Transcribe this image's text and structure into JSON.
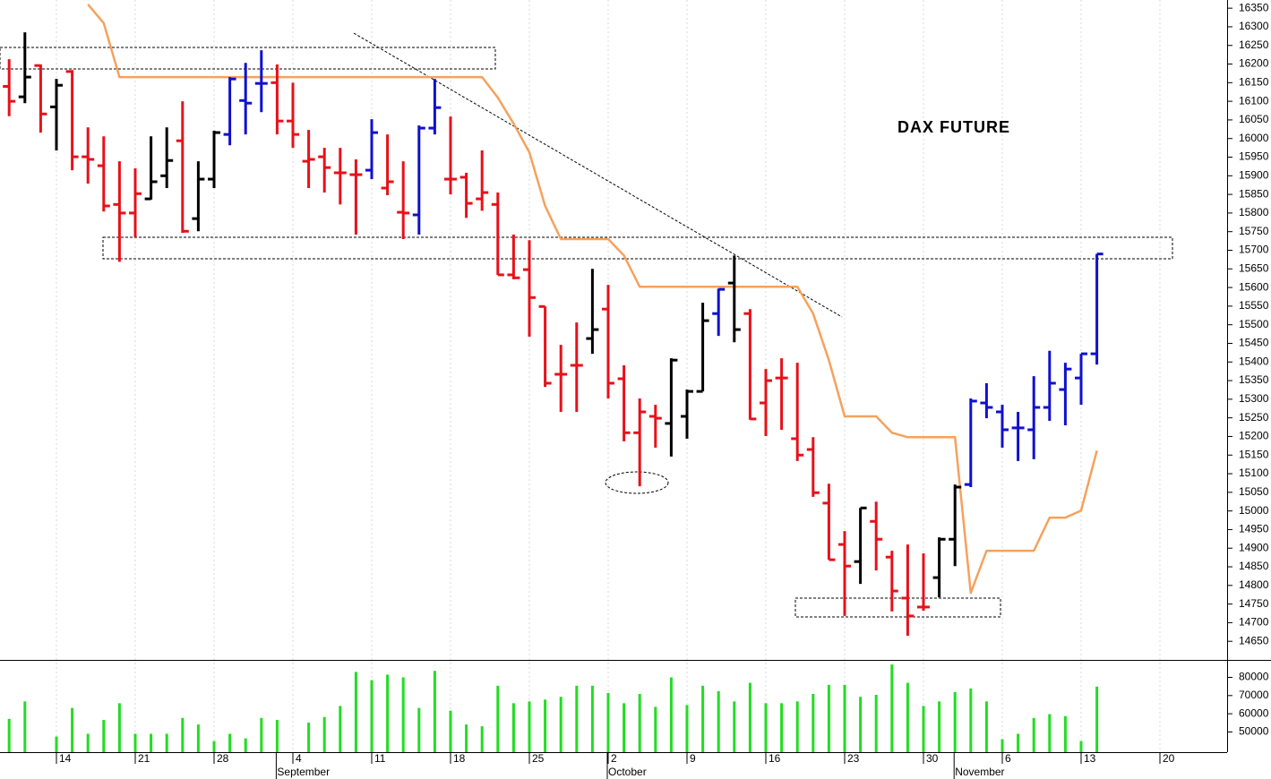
{
  "chart_data": {
    "type": "ohlc",
    "title": "DAX FUTURE",
    "categories": [
      null,
      null,
      null,
      "14",
      null,
      null,
      null,
      null,
      "21",
      null,
      null,
      null,
      null,
      "28",
      null,
      null,
      null,
      null,
      "4",
      null,
      null,
      null,
      null,
      "11",
      null,
      null,
      null,
      null,
      "18",
      null,
      null,
      null,
      null,
      "25",
      null,
      null,
      null,
      null,
      "2",
      null,
      null,
      null,
      null,
      "9",
      null,
      null,
      null,
      null,
      "16",
      null,
      null,
      null,
      null,
      "23",
      null,
      null,
      null,
      null,
      "30",
      null,
      null,
      null,
      null,
      "6",
      null,
      null,
      null,
      null,
      "13",
      null,
      null,
      null,
      null,
      "20",
      null,
      null,
      null,
      null
    ],
    "months": [
      null,
      null,
      null,
      null,
      null,
      null,
      null,
      null,
      null,
      null,
      null,
      null,
      null,
      null,
      null,
      null,
      null,
      "September",
      null,
      null,
      null,
      null,
      null,
      null,
      null,
      null,
      null,
      null,
      null,
      null,
      null,
      null,
      null,
      null,
      null,
      null,
      null,
      null,
      "October",
      null,
      null,
      null,
      null,
      null,
      null,
      null,
      null,
      null,
      null,
      null,
      null,
      null,
      null,
      null,
      null,
      null,
      null,
      null,
      null,
      null,
      "November",
      null,
      null,
      null,
      null,
      null,
      null,
      null,
      null,
      null,
      null,
      null,
      null,
      null,
      null,
      null,
      null,
      null
    ],
    "open": [
      16140,
      16112,
      16196,
      16085,
      16180,
      15951,
      15927,
      15823,
      15800,
      15838,
      15900,
      15994,
      15785,
      15891,
      16011,
      16102,
      16148,
      16150,
      16047,
      15939,
      15951,
      15908,
      15903,
      15915,
      15867,
      15802,
      15795,
      16028,
      15891,
      15896,
      15838,
      15823,
      15634,
      15648,
      15549,
      15367,
      15391,
      15463,
      15542,
      15355,
      15210,
      15254,
      15235,
      15254,
      15321,
      15530,
      15612,
      15530,
      15290,
      15357,
      15194,
      15165,
      15021,
      14910,
      14864,
      14972,
      14876,
      14766,
      14742,
      14821,
      14924,
      15071,
      15290,
      15266,
      15223,
      15218,
      15278,
      15326,
      15357,
      15422,
      null,
      null,
      null,
      null,
      null,
      null,
      null,
      null
    ],
    "high": [
      16213,
      16285,
      16199,
      16160,
      16184,
      16030,
      16006,
      15939,
      15920,
      16006,
      16030,
      16100,
      15939,
      16021,
      16165,
      16203,
      16237,
      16199,
      16150,
      16023,
      15975,
      15975,
      15944,
      16052,
      16011,
      15939,
      16035,
      16160,
      16059,
      15908,
      15968,
      15855,
      15742,
      15727,
      15549,
      15446,
      15506,
      15650,
      15607,
      15391,
      15302,
      15285,
      15410,
      15326,
      15559,
      15597,
      15686,
      15542,
      15381,
      15410,
      15398,
      15198,
      15073,
      14946,
      15008,
      15025,
      14893,
      14910,
      14886,
      14929,
      15071,
      15302,
      15343,
      15285,
      15266,
      15362,
      15430,
      15398,
      15422,
      15690,
      null,
      null,
      null,
      null,
      null,
      null,
      null,
      null
    ],
    "low": [
      16060,
      16095,
      16016,
      15968,
      15915,
      15879,
      15804,
      15669,
      15735,
      15836,
      15867,
      15747,
      15751,
      15867,
      15982,
      16011,
      16071,
      16011,
      15975,
      15867,
      15855,
      15823,
      15742,
      15891,
      15848,
      15730,
      15742,
      16011,
      15850,
      15787,
      15806,
      15634,
      15622,
      15468,
      15333,
      15266,
      15266,
      15422,
      15302,
      15187,
      15066,
      15170,
      15146,
      15194,
      15321,
      15470,
      15453,
      15245,
      15201,
      15218,
      15134,
      15038,
      14869,
      14718,
      14804,
      14840,
      14730,
      14665,
      14732,
      14768,
      14852,
      15064,
      15249,
      15170,
      15134,
      15139,
      15242,
      15230,
      15285,
      15393,
      null,
      null,
      null,
      null,
      null,
      null,
      null,
      null
    ],
    "close": [
      16100,
      16165,
      16066,
      16143,
      15951,
      15944,
      15819,
      15800,
      15852,
      15884,
      15941,
      15751,
      15891,
      16016,
      16160,
      16095,
      16148,
      16047,
      16011,
      15944,
      15922,
      15908,
      15903,
      16016,
      15884,
      15800,
      16028,
      16083,
      15891,
      15826,
      15855,
      15634,
      15626,
      15573,
      15343,
      15367,
      15391,
      15487,
      15343,
      15210,
      15266,
      15249,
      15405,
      15321,
      15511,
      15595,
      15487,
      15247,
      15350,
      15357,
      15150,
      15049,
      14869,
      14852,
      15008,
      14924,
      14785,
      14718,
      14742,
      14924,
      15064,
      15295,
      15278,
      15218,
      15223,
      15278,
      15343,
      15381,
      15422,
      15690,
      null,
      null,
      null,
      null,
      null,
      null,
      null,
      null
    ],
    "colors": [
      "#e8101a",
      "#000000",
      "#e8101a",
      "#000000",
      "#e8101a",
      "#e8101a",
      "#e8101a",
      "#e8101a",
      "#e8101a",
      "#000000",
      "#000000",
      "#e8101a",
      "#000000",
      "#000000",
      "#1010d0",
      "#1010d0",
      "#1010d0",
      "#e8101a",
      "#e8101a",
      "#e8101a",
      "#e8101a",
      "#e8101a",
      "#e8101a",
      "#1010d0",
      "#e8101a",
      "#e8101a",
      "#1010d0",
      "#1010d0",
      "#e8101a",
      "#e8101a",
      "#e8101a",
      "#e8101a",
      "#e8101a",
      "#e8101a",
      "#e8101a",
      "#e8101a",
      "#e8101a",
      "#000000",
      "#e8101a",
      "#e8101a",
      "#e8101a",
      "#e8101a",
      "#000000",
      "#000000",
      "#000000",
      "#1010d0",
      "#000000",
      "#e8101a",
      "#e8101a",
      "#e8101a",
      "#e8101a",
      "#e8101a",
      "#e8101a",
      "#e8101a",
      "#000000",
      "#e8101a",
      "#e8101a",
      "#e8101a",
      "#e8101a",
      "#000000",
      "#000000",
      "#1010d0",
      "#1010d0",
      "#1010d0",
      "#1010d0",
      "#1010d0",
      "#1010d0",
      "#1010d0",
      "#1010d0",
      "#1010d0",
      null,
      null,
      null,
      null,
      null,
      null,
      null,
      null
    ],
    "line": {
      "color": "#f6a15c",
      "values": [
        null,
        null,
        null,
        null,
        null,
        16360,
        16310,
        16165,
        16165,
        16165,
        16165,
        16165,
        16165,
        16165,
        16165,
        16165,
        16165,
        16165,
        16165,
        16165,
        16165,
        16165,
        16165,
        16165,
        16165,
        16165,
        16165,
        16165,
        16165,
        16165,
        16165,
        16110,
        16040,
        15963,
        15819,
        15730,
        15730,
        15730,
        15730,
        15686,
        15602,
        15602,
        15602,
        15602,
        15602,
        15602,
        15602,
        15602,
        15602,
        15602,
        15602,
        15530,
        15405,
        15254,
        15254,
        15254,
        15210,
        15198,
        15198,
        15198,
        15198,
        14780,
        14893,
        14893,
        14893,
        14893,
        14982,
        14982,
        15001,
        15162,
        null,
        null,
        null,
        null,
        null,
        null,
        null,
        null
      ]
    },
    "ylim": [
      14600,
      16372
    ],
    "yticks": [
      14650,
      14700,
      14750,
      14800,
      14850,
      14900,
      14950,
      15000,
      15050,
      15100,
      15150,
      15200,
      15250,
      15300,
      15350,
      15400,
      15450,
      15500,
      15550,
      15600,
      15650,
      15700,
      15750,
      15800,
      15850,
      15900,
      15950,
      16000,
      16050,
      16100,
      16150,
      16200,
      16250,
      16300,
      16350
    ],
    "xgrid": true,
    "volume": {
      "color": "#22dd22",
      "values": [
        57200,
        66800,
        null,
        47500,
        63200,
        49000,
        56600,
        65800,
        49000,
        49000,
        49000,
        57700,
        54100,
        45000,
        49000,
        46500,
        57700,
        56600,
        null,
        55100,
        58200,
        64300,
        83000,
        78500,
        81500,
        80000,
        63200,
        83600,
        61700,
        54100,
        53100,
        75400,
        65800,
        66800,
        67800,
        69300,
        75400,
        75400,
        71400,
        65800,
        70900,
        63800,
        80000,
        64800,
        75400,
        72400,
        66800,
        77000,
        65800,
        65800,
        66800,
        70900,
        75900,
        75900,
        69300,
        70400,
        87100,
        77000,
        64300,
        66800,
        71900,
        73900,
        66800,
        46000,
        49000,
        57700,
        59800,
        58700,
        45000,
        74900,
        null,
        null,
        null,
        null,
        null,
        null,
        null,
        null
      ],
      "ylim": [
        38900,
        89600
      ],
      "yticks": [
        50000,
        60000,
        70000,
        80000
      ]
    }
  }
}
